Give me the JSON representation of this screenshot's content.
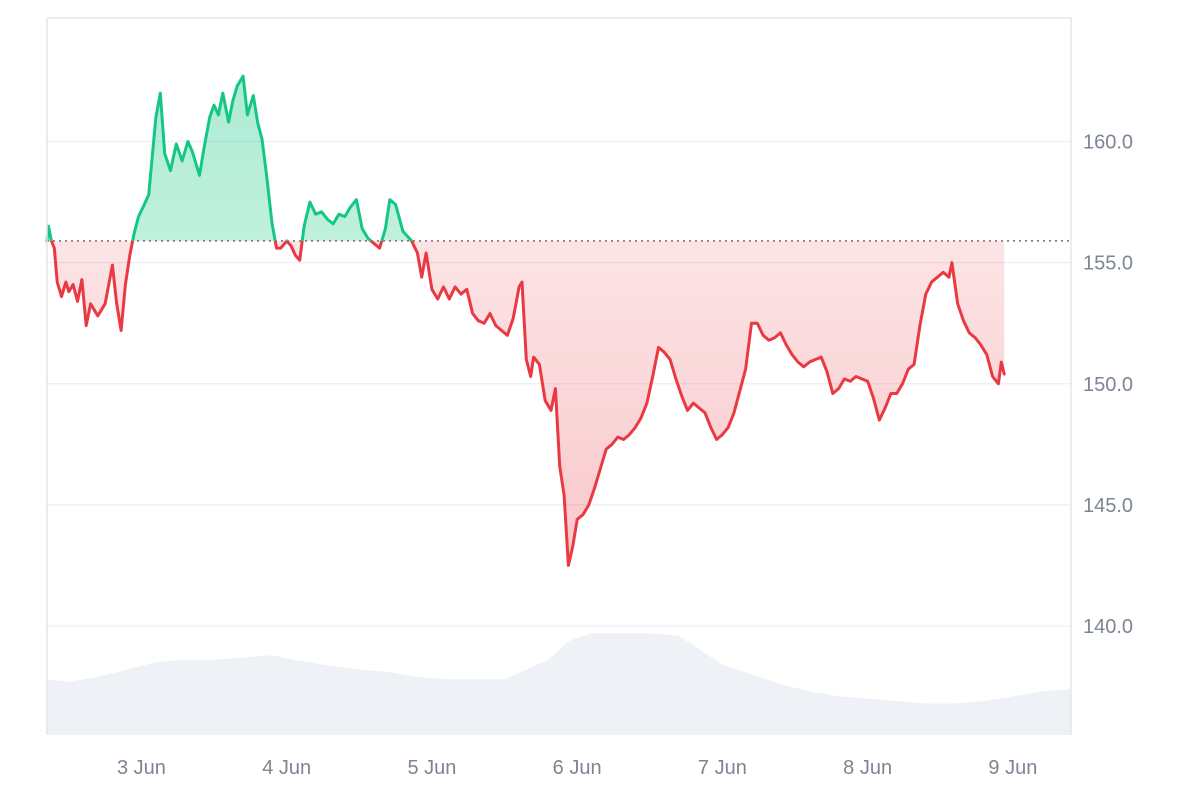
{
  "chart_data": {
    "type": "line",
    "baseline": 155.9,
    "ylim": [
      135.5,
      165.1
    ],
    "yticks": [
      {
        "value": 160,
        "label": "160.0"
      },
      {
        "value": 155,
        "label": "155.0"
      },
      {
        "value": 150,
        "label": "150.0"
      },
      {
        "value": 145,
        "label": "145.0"
      },
      {
        "value": 140,
        "label": "140.0"
      }
    ],
    "xlim": [
      2.35,
      9.4
    ],
    "xticks": [
      {
        "value": 3,
        "label": "3 Jun"
      },
      {
        "value": 4,
        "label": "4 Jun"
      },
      {
        "value": 5,
        "label": "5 Jun"
      },
      {
        "value": 6,
        "label": "6 Jun"
      },
      {
        "value": 7,
        "label": "7 Jun"
      },
      {
        "value": 8,
        "label": "8 Jun"
      },
      {
        "value": 9,
        "label": "9 Jun"
      }
    ],
    "grid": true,
    "colors": {
      "up": "#16c784",
      "down": "#ea3943",
      "up_fill": "#16c784",
      "down_fill": "#ea3943",
      "volume": "#eef1f5",
      "grid": "#eceff3",
      "baseline": "#7a6a6a",
      "axis": "#e3e6ea"
    },
    "price": [
      [
        2.35,
        155.9
      ],
      [
        2.36,
        156.5
      ],
      [
        2.38,
        155.9
      ],
      [
        2.4,
        155.6
      ],
      [
        2.42,
        154.2
      ],
      [
        2.45,
        153.6
      ],
      [
        2.48,
        154.2
      ],
      [
        2.5,
        153.8
      ],
      [
        2.53,
        154.1
      ],
      [
        2.56,
        153.4
      ],
      [
        2.59,
        154.3
      ],
      [
        2.62,
        152.4
      ],
      [
        2.65,
        153.3
      ],
      [
        2.7,
        152.8
      ],
      [
        2.75,
        153.3
      ],
      [
        2.8,
        154.9
      ],
      [
        2.83,
        153.3
      ],
      [
        2.86,
        152.2
      ],
      [
        2.89,
        154.1
      ],
      [
        2.92,
        155.3
      ],
      [
        2.95,
        156.2
      ],
      [
        2.98,
        156.9
      ],
      [
        3.02,
        157.4
      ],
      [
        3.05,
        157.8
      ],
      [
        3.1,
        161.0
      ],
      [
        3.13,
        162.0
      ],
      [
        3.16,
        159.5
      ],
      [
        3.2,
        158.8
      ],
      [
        3.24,
        159.9
      ],
      [
        3.28,
        159.2
      ],
      [
        3.32,
        160.0
      ],
      [
        3.35,
        159.6
      ],
      [
        3.4,
        158.6
      ],
      [
        3.43,
        159.7
      ],
      [
        3.47,
        161.0
      ],
      [
        3.5,
        161.5
      ],
      [
        3.53,
        161.1
      ],
      [
        3.56,
        162.0
      ],
      [
        3.6,
        160.8
      ],
      [
        3.63,
        161.7
      ],
      [
        3.66,
        162.3
      ],
      [
        3.7,
        162.7
      ],
      [
        3.73,
        161.1
      ],
      [
        3.77,
        161.9
      ],
      [
        3.8,
        160.8
      ],
      [
        3.83,
        160.1
      ],
      [
        3.86,
        158.7
      ],
      [
        3.9,
        156.6
      ],
      [
        3.93,
        155.6
      ],
      [
        3.96,
        155.6
      ],
      [
        4.0,
        155.9
      ],
      [
        4.03,
        155.7
      ],
      [
        4.06,
        155.3
      ],
      [
        4.09,
        155.1
      ],
      [
        4.12,
        156.5
      ],
      [
        4.16,
        157.5
      ],
      [
        4.2,
        157.0
      ],
      [
        4.24,
        157.1
      ],
      [
        4.28,
        156.8
      ],
      [
        4.32,
        156.6
      ],
      [
        4.36,
        157.0
      ],
      [
        4.4,
        156.9
      ],
      [
        4.44,
        157.3
      ],
      [
        4.48,
        157.6
      ],
      [
        4.52,
        156.4
      ],
      [
        4.56,
        156.0
      ],
      [
        4.6,
        155.8
      ],
      [
        4.64,
        155.6
      ],
      [
        4.68,
        156.4
      ],
      [
        4.71,
        157.6
      ],
      [
        4.75,
        157.4
      ],
      [
        4.8,
        156.3
      ],
      [
        4.83,
        156.1
      ],
      [
        4.86,
        155.9
      ],
      [
        4.9,
        155.4
      ],
      [
        4.93,
        154.4
      ],
      [
        4.96,
        155.4
      ],
      [
        5.0,
        153.9
      ],
      [
        5.04,
        153.5
      ],
      [
        5.08,
        154.0
      ],
      [
        5.12,
        153.5
      ],
      [
        5.16,
        154.0
      ],
      [
        5.2,
        153.7
      ],
      [
        5.24,
        153.9
      ],
      [
        5.28,
        152.9
      ],
      [
        5.32,
        152.6
      ],
      [
        5.36,
        152.5
      ],
      [
        5.4,
        152.9
      ],
      [
        5.44,
        152.4
      ],
      [
        5.48,
        152.2
      ],
      [
        5.52,
        152.0
      ],
      [
        5.56,
        152.7
      ],
      [
        5.6,
        154.0
      ],
      [
        5.62,
        154.2
      ],
      [
        5.65,
        151.0
      ],
      [
        5.68,
        150.3
      ],
      [
        5.7,
        151.1
      ],
      [
        5.74,
        150.8
      ],
      [
        5.78,
        149.3
      ],
      [
        5.82,
        148.9
      ],
      [
        5.85,
        149.8
      ],
      [
        5.88,
        146.6
      ],
      [
        5.91,
        145.4
      ],
      [
        5.94,
        142.5
      ],
      [
        5.97,
        143.3
      ],
      [
        6.0,
        144.4
      ],
      [
        6.04,
        144.6
      ],
      [
        6.08,
        145.0
      ],
      [
        6.12,
        145.7
      ],
      [
        6.16,
        146.5
      ],
      [
        6.2,
        147.3
      ],
      [
        6.24,
        147.5
      ],
      [
        6.28,
        147.8
      ],
      [
        6.32,
        147.7
      ],
      [
        6.36,
        147.9
      ],
      [
        6.4,
        148.2
      ],
      [
        6.44,
        148.6
      ],
      [
        6.48,
        149.2
      ],
      [
        6.52,
        150.3
      ],
      [
        6.56,
        151.5
      ],
      [
        6.6,
        151.3
      ],
      [
        6.64,
        151.0
      ],
      [
        6.68,
        150.2
      ],
      [
        6.72,
        149.5
      ],
      [
        6.76,
        148.9
      ],
      [
        6.8,
        149.2
      ],
      [
        6.84,
        149.0
      ],
      [
        6.88,
        148.8
      ],
      [
        6.92,
        148.2
      ],
      [
        6.96,
        147.7
      ],
      [
        7.0,
        147.9
      ],
      [
        7.04,
        148.2
      ],
      [
        7.08,
        148.8
      ],
      [
        7.12,
        149.7
      ],
      [
        7.16,
        150.6
      ],
      [
        7.2,
        152.5
      ],
      [
        7.24,
        152.5
      ],
      [
        7.28,
        152.0
      ],
      [
        7.32,
        151.8
      ],
      [
        7.36,
        151.9
      ],
      [
        7.4,
        152.1
      ],
      [
        7.44,
        151.6
      ],
      [
        7.48,
        151.2
      ],
      [
        7.52,
        150.9
      ],
      [
        7.56,
        150.7
      ],
      [
        7.6,
        150.9
      ],
      [
        7.64,
        151.0
      ],
      [
        7.68,
        151.1
      ],
      [
        7.72,
        150.5
      ],
      [
        7.76,
        149.6
      ],
      [
        7.8,
        149.8
      ],
      [
        7.84,
        150.2
      ],
      [
        7.88,
        150.1
      ],
      [
        7.92,
        150.3
      ],
      [
        7.96,
        150.2
      ],
      [
        8.0,
        150.1
      ],
      [
        8.04,
        149.4
      ],
      [
        8.08,
        148.5
      ],
      [
        8.12,
        149.0
      ],
      [
        8.16,
        149.6
      ],
      [
        8.2,
        149.6
      ],
      [
        8.24,
        150.0
      ],
      [
        8.28,
        150.6
      ],
      [
        8.32,
        150.8
      ],
      [
        8.36,
        152.4
      ],
      [
        8.4,
        153.7
      ],
      [
        8.44,
        154.2
      ],
      [
        8.48,
        154.4
      ],
      [
        8.52,
        154.6
      ],
      [
        8.56,
        154.4
      ],
      [
        8.58,
        155.0
      ],
      [
        8.62,
        153.3
      ],
      [
        8.66,
        152.6
      ],
      [
        8.7,
        152.1
      ],
      [
        8.74,
        151.9
      ],
      [
        8.78,
        151.6
      ],
      [
        8.82,
        151.2
      ],
      [
        8.86,
        150.3
      ],
      [
        8.9,
        150.0
      ],
      [
        8.92,
        150.9
      ],
      [
        8.94,
        150.4
      ]
    ],
    "volume": [
      [
        2.35,
        137.8
      ],
      [
        2.5,
        137.7
      ],
      [
        2.7,
        137.9
      ],
      [
        2.9,
        138.2
      ],
      [
        3.1,
        138.5
      ],
      [
        3.3,
        138.6
      ],
      [
        3.5,
        138.6
      ],
      [
        3.7,
        138.7
      ],
      [
        3.9,
        138.8
      ],
      [
        4.05,
        138.6
      ],
      [
        4.25,
        138.4
      ],
      [
        4.5,
        138.2
      ],
      [
        4.7,
        138.1
      ],
      [
        4.9,
        137.9
      ],
      [
        5.1,
        137.8
      ],
      [
        5.3,
        137.8
      ],
      [
        5.5,
        137.8
      ],
      [
        5.65,
        138.2
      ],
      [
        5.8,
        138.6
      ],
      [
        5.95,
        139.4
      ],
      [
        6.1,
        139.7
      ],
      [
        6.3,
        139.7
      ],
      [
        6.5,
        139.7
      ],
      [
        6.7,
        139.6
      ],
      [
        6.85,
        139.0
      ],
      [
        7.0,
        138.4
      ],
      [
        7.2,
        138.0
      ],
      [
        7.4,
        137.6
      ],
      [
        7.6,
        137.3
      ],
      [
        7.8,
        137.1
      ],
      [
        8.0,
        137.0
      ],
      [
        8.2,
        136.9
      ],
      [
        8.4,
        136.8
      ],
      [
        8.6,
        136.8
      ],
      [
        8.8,
        136.9
      ],
      [
        9.0,
        137.1
      ],
      [
        9.2,
        137.3
      ],
      [
        9.4,
        137.4
      ]
    ]
  }
}
